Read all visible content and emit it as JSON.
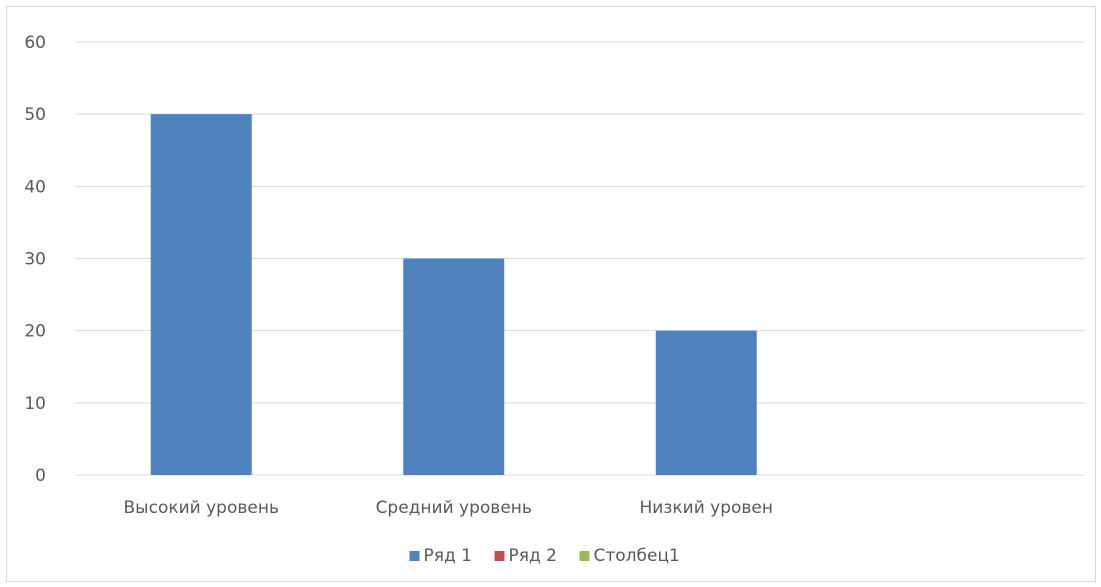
{
  "chart_data": {
    "type": "bar",
    "title": "",
    "xlabel": "",
    "ylabel": "",
    "categories": [
      "Высокий уровень",
      "Средний уровень",
      "Низкий уровен",
      ""
    ],
    "series": [
      {
        "name": "Ряд 1",
        "values": [
          50,
          30,
          20,
          null
        ],
        "color": "#4F81BD"
      },
      {
        "name": "Ряд 2",
        "values": [
          null,
          null,
          null,
          null
        ],
        "color": "#C0504D"
      },
      {
        "name": "Столбец1",
        "values": [
          null,
          null,
          null,
          null
        ],
        "color": "#9BBB59"
      }
    ],
    "ylim": [
      0,
      60
    ],
    "yticks": [
      0,
      10,
      20,
      30,
      40,
      50,
      60
    ],
    "grid": true,
    "legend_position": "bottom"
  }
}
